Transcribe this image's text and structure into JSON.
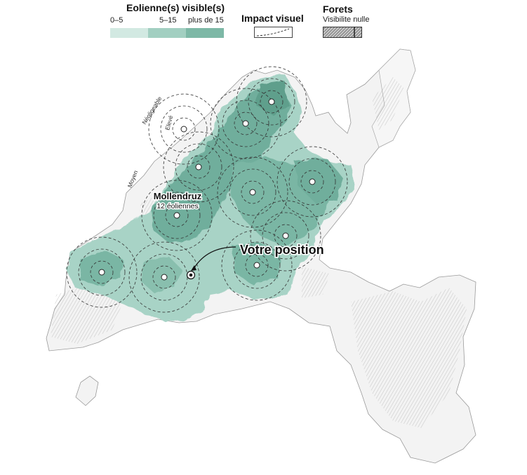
{
  "legend": {
    "visible": {
      "title": "Eolienne(s) visible(s)",
      "classes": [
        {
          "label": "0–5",
          "color": "#d2e9e2"
        },
        {
          "label": "5–15",
          "color": "#a2cfc1"
        },
        {
          "label": "plus de 15",
          "color": "#7db8a6"
        }
      ]
    },
    "impact": {
      "title": "Impact visuel"
    },
    "forets": {
      "title": "Forets",
      "subtitle": "Visibilite nulle"
    }
  },
  "map": {
    "ring_labels": [
      "Négligeable",
      "Elevé",
      "Moyen"
    ],
    "cluster": {
      "name": "Mollendruz",
      "count": "12 éoliennes"
    },
    "position_label": "Votre position",
    "colors": {
      "land": "#f3f3f3",
      "border": "#9a9a9a",
      "visibility_dark": "#6fae9c",
      "visibility_light": "#a8d3c6",
      "hatch": "#8a8a8a"
    }
  }
}
